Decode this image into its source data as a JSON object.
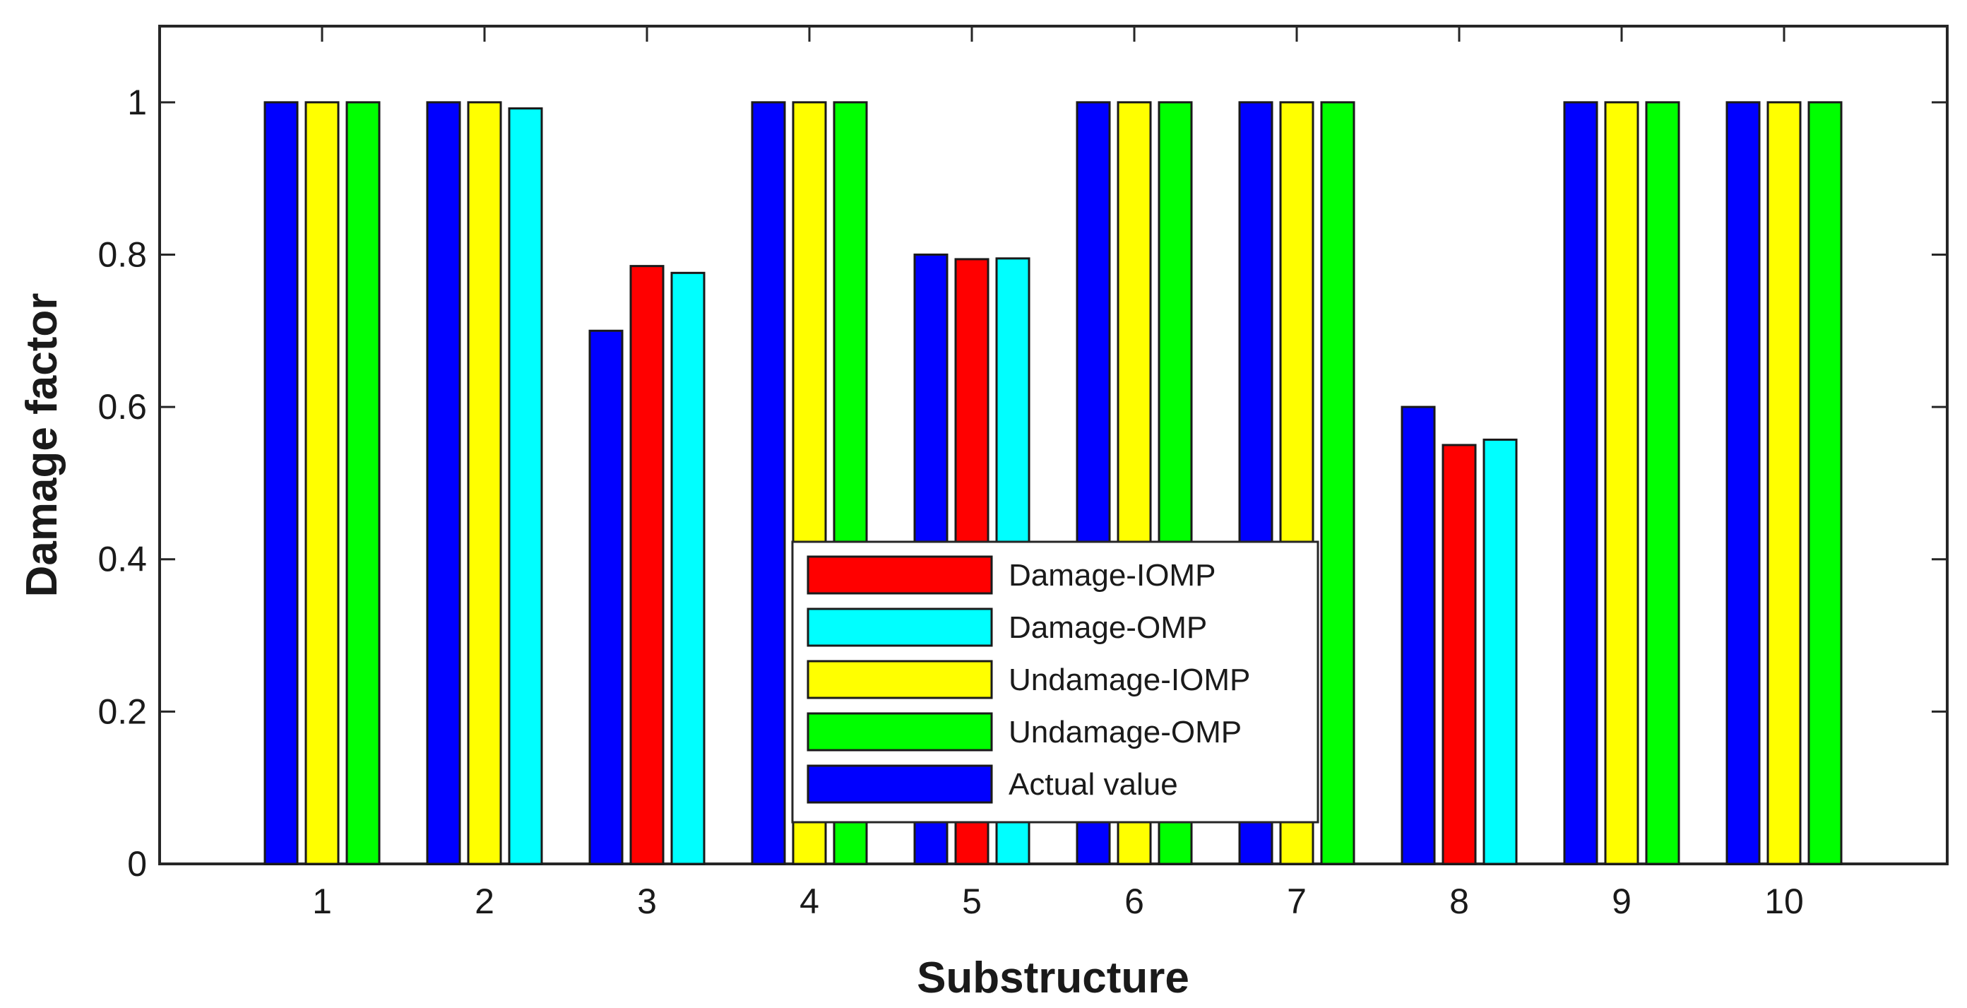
{
  "chart_data": {
    "type": "bar",
    "xlabel": "Substructure",
    "ylabel": "Damage factor",
    "ylim": [
      0,
      1.1
    ],
    "yticks": [
      0,
      0.2,
      0.4,
      0.6,
      0.8,
      1
    ],
    "ytick_labels": [
      "0",
      "0.2",
      "0.4",
      "0.6",
      "0.8",
      "1"
    ],
    "categories": [
      "1",
      "2",
      "3",
      "4",
      "5",
      "6",
      "7",
      "8",
      "9",
      "10"
    ],
    "grid": false,
    "legend_position": "bottom-center",
    "bars": [
      [
        {
          "series": "Actual value",
          "value": 1.0
        },
        {
          "series": "Undamage-IOMP",
          "value": 1.0
        },
        {
          "series": "Undamage-OMP",
          "value": 1.0
        }
      ],
      [
        {
          "series": "Actual value",
          "value": 1.0
        },
        {
          "series": "Undamage-IOMP",
          "value": 1.0
        },
        {
          "series": "Damage-OMP",
          "value": 0.992
        }
      ],
      [
        {
          "series": "Actual value",
          "value": 0.7
        },
        {
          "series": "Damage-IOMP",
          "value": 0.785
        },
        {
          "series": "Damage-OMP",
          "value": 0.776
        }
      ],
      [
        {
          "series": "Actual value",
          "value": 1.0
        },
        {
          "series": "Undamage-IOMP",
          "value": 1.0
        },
        {
          "series": "Undamage-OMP",
          "value": 1.0
        }
      ],
      [
        {
          "series": "Actual value",
          "value": 0.8
        },
        {
          "series": "Damage-IOMP",
          "value": 0.794
        },
        {
          "series": "Damage-OMP",
          "value": 0.795
        }
      ],
      [
        {
          "series": "Actual value",
          "value": 1.0
        },
        {
          "series": "Undamage-IOMP",
          "value": 1.0
        },
        {
          "series": "Undamage-OMP",
          "value": 1.0
        }
      ],
      [
        {
          "series": "Actual value",
          "value": 1.0
        },
        {
          "series": "Undamage-IOMP",
          "value": 1.0
        },
        {
          "series": "Undamage-OMP",
          "value": 1.0
        }
      ],
      [
        {
          "series": "Actual value",
          "value": 0.6
        },
        {
          "series": "Damage-IOMP",
          "value": 0.55
        },
        {
          "series": "Damage-OMP",
          "value": 0.557
        }
      ],
      [
        {
          "series": "Actual value",
          "value": 1.0
        },
        {
          "series": "Undamage-IOMP",
          "value": 1.0
        },
        {
          "series": "Undamage-OMP",
          "value": 1.0
        }
      ],
      [
        {
          "series": "Actual value",
          "value": 1.0
        },
        {
          "series": "Undamage-IOMP",
          "value": 1.0
        },
        {
          "series": "Undamage-OMP",
          "value": 1.0
        }
      ]
    ],
    "legend": [
      {
        "name": "Damage-IOMP",
        "color": "#ff0000"
      },
      {
        "name": "Damage-OMP",
        "color": "#00ffff"
      },
      {
        "name": "Undamage-IOMP",
        "color": "#ffff00"
      },
      {
        "name": "Undamage-OMP",
        "color": "#00ff00"
      },
      {
        "name": "Actual value",
        "color": "#0000ff"
      }
    ]
  }
}
